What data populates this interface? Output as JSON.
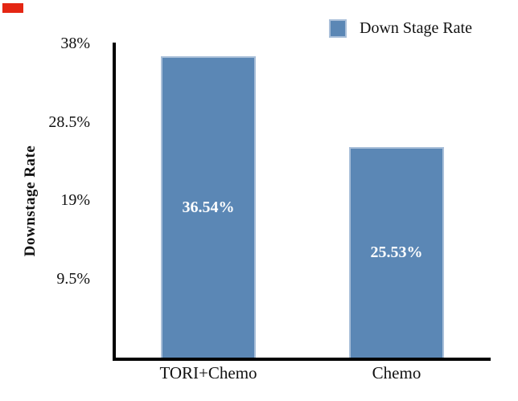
{
  "corner_mark": {
    "color": "#e42613"
  },
  "chart_data": {
    "type": "bar",
    "title": "",
    "categories": [
      "TORI+Chemo",
      "Chemo"
    ],
    "values": [
      36.54,
      25.53
    ],
    "bar_labels": [
      "36.54%",
      "25.53%"
    ],
    "xlabel": "",
    "ylabel": "Downstage Rate",
    "ylim": [
      0,
      38
    ],
    "yticks": [
      {
        "value": 38,
        "label": "38%"
      },
      {
        "value": 28.5,
        "label": "28.5%"
      },
      {
        "value": 19,
        "label": "19%"
      },
      {
        "value": 9.5,
        "label": "9.5%"
      }
    ],
    "legend": [
      "Down Stage Rate"
    ],
    "legend_position": "top-right",
    "grid": false,
    "bar_color": "#5b87b5",
    "bar_border_color": "#a9bfd9",
    "bar_label_color": "#ffffff",
    "axis_color": "#000000",
    "text_color": "#111111"
  }
}
